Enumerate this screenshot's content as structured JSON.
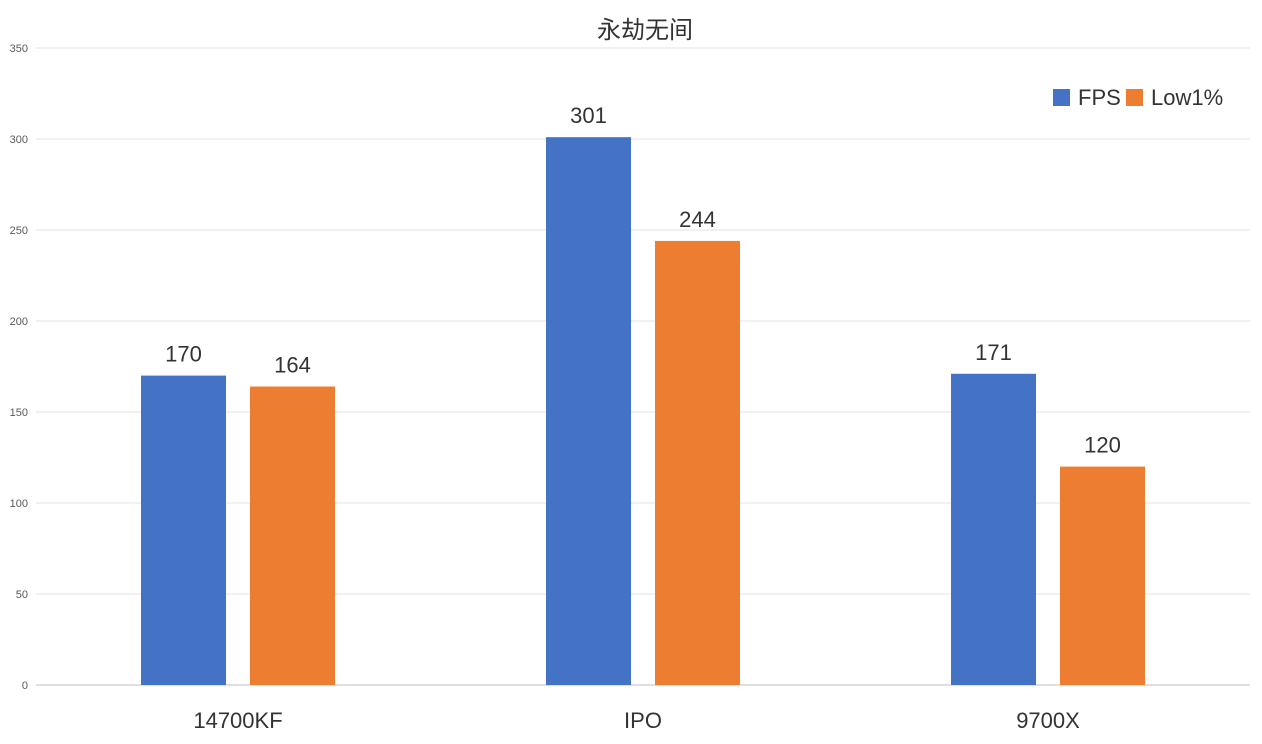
{
  "chart_data": {
    "type": "bar",
    "title": "永劫无间",
    "categories": [
      "14700KF",
      "IPO",
      "9700X"
    ],
    "series": [
      {
        "name": "FPS",
        "values": [
          170,
          301,
          171
        ],
        "color": "#4472C4"
      },
      {
        "name": "Low1%",
        "values": [
          164,
          244,
          120
        ],
        "color": "#ED7D31"
      }
    ],
    "ylim": [
      0,
      350
    ],
    "yticks": [
      0,
      50,
      100,
      150,
      200,
      250,
      300,
      350
    ],
    "grid": true,
    "legend_position": "top-right",
    "xlabel": "",
    "ylabel": ""
  }
}
